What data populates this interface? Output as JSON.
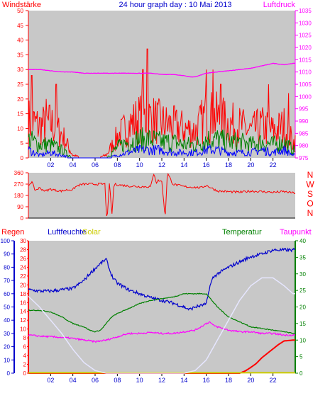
{
  "colors": {
    "wind": "#ff0000",
    "gust": "#008000",
    "avg": "#0000ff",
    "pressure": "#ff00ff",
    "direction": "#ff0000",
    "rain": "#ff0000",
    "humidity": "#0000cc",
    "solar": "#cccc00",
    "temperature": "#008000",
    "dewpoint": "#ff00ff",
    "solar_curve": "#e6e6ff",
    "plot_bg": "#c8c8c8",
    "title": "#0000cc"
  },
  "chart_data": [
    {
      "type": "line",
      "title": "24 hour graph day : 10 Mai 2013",
      "left_label": "Windstärke",
      "right_label": "Luftdruck",
      "x_ticks": [
        "02",
        "04",
        "06",
        "08",
        "10",
        "12",
        "14",
        "16",
        "18",
        "20",
        "22"
      ],
      "x_range": [
        0,
        24
      ],
      "left_ticks": [
        "0",
        "5",
        "10",
        "15",
        "20",
        "25",
        "30",
        "35",
        "40",
        "45",
        "50"
      ],
      "ylim_left": [
        0,
        50
      ],
      "right_ticks": [
        "975",
        "980",
        "985",
        "990",
        "995",
        "1000",
        "1005",
        "1010",
        "1015",
        "1020",
        "1025",
        "1030",
        "1035"
      ],
      "ylim_right": [
        975,
        1035
      ],
      "series": [
        {
          "key": "pressure",
          "axis": "right",
          "x": [
            0,
            1,
            2,
            3,
            4,
            5,
            6,
            7,
            8,
            9,
            10,
            11,
            12,
            13,
            14,
            14.5,
            15,
            16,
            17,
            18,
            19,
            20,
            21,
            22,
            23,
            23.8
          ],
          "y": [
            1011,
            1011,
            1010.5,
            1010,
            1010,
            1009.5,
            1009.5,
            1009.5,
            1009.5,
            1009.5,
            1009.5,
            1009.5,
            1009,
            1009,
            1008.5,
            1008,
            1008,
            1009.5,
            1010,
            1010.5,
            1011,
            1011.5,
            1012.5,
            1013.5,
            1013,
            1013.5
          ]
        },
        {
          "key": "wind",
          "axis": "left",
          "x": [
            0,
            1,
            2,
            3,
            4,
            5,
            6,
            7,
            8,
            9,
            10,
            11,
            12,
            13,
            14,
            15,
            16,
            17,
            18,
            19,
            20,
            21,
            22,
            23,
            23.8
          ],
          "y": [
            14,
            12,
            13,
            9,
            1,
            0,
            0,
            1,
            8,
            12,
            15,
            15,
            13,
            12,
            11,
            10,
            16,
            15,
            13,
            12,
            10,
            12,
            10,
            12,
            6
          ],
          "peaks": [
            [
              0.3,
              28
            ],
            [
              1.6,
              20
            ],
            [
              2.5,
              25
            ],
            [
              10.7,
              37
            ],
            [
              10.3,
              30
            ],
            [
              16.0,
              30
            ],
            [
              16.6,
              30
            ],
            [
              17.3,
              25
            ],
            [
              21.6,
              25
            ],
            [
              23.4,
              22
            ]
          ]
        },
        {
          "key": "gust",
          "axis": "left",
          "x": [
            0,
            1,
            2,
            3,
            4,
            5,
            6,
            7,
            8,
            9,
            10,
            11,
            12,
            13,
            14,
            15,
            16,
            17,
            18,
            19,
            20,
            21,
            22,
            23,
            23.8
          ],
          "y": [
            7,
            5,
            5,
            3,
            0,
            0,
            0,
            0,
            4,
            6,
            7,
            7,
            6,
            6,
            5,
            5,
            7,
            7,
            6,
            6,
            5,
            6,
            5,
            6,
            3
          ]
        },
        {
          "key": "avg",
          "axis": "left",
          "x": [
            0,
            1,
            2,
            3,
            4,
            5,
            6,
            7,
            8,
            9,
            10,
            11,
            12,
            13,
            14,
            15,
            16,
            17,
            18,
            19,
            20,
            21,
            22,
            23,
            23.8
          ],
          "y": [
            3,
            1,
            2,
            1,
            0,
            0,
            0,
            0,
            1,
            2,
            3,
            3,
            3,
            2,
            2,
            2,
            3,
            3,
            2,
            2,
            2,
            3,
            2,
            3,
            1
          ]
        }
      ]
    },
    {
      "type": "line",
      "left_ticks": [
        "0",
        "90",
        "180",
        "270",
        "360"
      ],
      "ylim": [
        0,
        360
      ],
      "right_ticks": [
        "N",
        "W",
        "S",
        "O",
        "N"
      ],
      "x_range": [
        0,
        24
      ],
      "series": [
        {
          "key": "direction",
          "x": [
            0,
            0.3,
            0.6,
            1,
            1.5,
            2,
            2.5,
            3,
            3.5,
            4,
            4.2,
            4.5,
            5,
            6,
            6.9,
            7.0,
            7.1,
            7.3,
            7.5,
            7.7,
            8,
            9,
            10,
            11,
            11.3,
            11.5,
            11.7,
            12,
            12.3,
            12.5,
            13,
            14,
            15,
            15.5,
            16,
            17,
            18,
            19,
            20,
            21,
            22,
            23,
            23.8
          ],
          "y": [
            260,
            290,
            220,
            240,
            215,
            230,
            220,
            215,
            225,
            225,
            245,
            260,
            270,
            270,
            270,
            40,
            0,
            300,
            10,
            270,
            265,
            255,
            250,
            250,
            360,
            280,
            300,
            290,
            0,
            360,
            270,
            250,
            245,
            240,
            260,
            215,
            210,
            205,
            215,
            210,
            205,
            210,
            200
          ]
        }
      ]
    },
    {
      "type": "line",
      "labels": {
        "rain": "Regen",
        "humidity": "Luftfeuchte",
        "solar": "Solar",
        "temperature": "Temperatur",
        "dewpoint": "Taupunkt"
      },
      "x_ticks": [
        "02",
        "04",
        "06",
        "08",
        "10",
        "12",
        "14",
        "16",
        "18",
        "20",
        "22"
      ],
      "x_range": [
        0,
        24
      ],
      "humidity_ticks": [
        "0",
        "10",
        "20",
        "30",
        "40",
        "50",
        "60",
        "70",
        "80",
        "90",
        "100"
      ],
      "ylim_humidity": [
        0,
        100
      ],
      "rain_ticks": [
        "0",
        "2",
        "4",
        "6",
        "8",
        "10",
        "12",
        "14",
        "16",
        "18",
        "20",
        "22",
        "24",
        "26",
        "28",
        "30"
      ],
      "ylim_rain": [
        0,
        30
      ],
      "temp_ticks": [
        "0",
        "5",
        "10",
        "15",
        "20",
        "25",
        "30",
        "35",
        "40"
      ],
      "ylim_temp": [
        0,
        40
      ],
      "series": [
        {
          "key": "humidity",
          "axis": "humidity",
          "x": [
            0,
            1,
            2,
            3,
            4,
            5,
            5.5,
            6,
            6.5,
            7,
            7.3,
            7.6,
            8,
            9,
            10,
            11,
            12,
            13,
            14,
            14.5,
            15,
            15.5,
            16,
            16.3,
            16.6,
            17,
            18,
            19,
            20,
            21,
            22,
            23,
            23.8
          ],
          "y": [
            63,
            62,
            62,
            63,
            64,
            70,
            75,
            79,
            83,
            86,
            78,
            72,
            68,
            63,
            60,
            57,
            55,
            53,
            50,
            48,
            50,
            51,
            52,
            65,
            72,
            75,
            80,
            84,
            88,
            90,
            93,
            93,
            93
          ],
          "noisy": true
        },
        {
          "key": "temperature",
          "axis": "temp",
          "x": [
            0,
            1,
            2,
            3,
            4,
            5,
            5.5,
            6,
            6.5,
            7,
            7.5,
            8,
            9,
            10,
            11,
            12,
            13,
            14,
            15,
            15.5,
            16,
            16.5,
            17,
            18,
            19,
            20,
            21,
            22,
            23,
            23.8
          ],
          "y": [
            19,
            19,
            18.5,
            17,
            15,
            14,
            13,
            12.5,
            13,
            15,
            17,
            18,
            19.5,
            21,
            22,
            22.5,
            23,
            24,
            24,
            24,
            24,
            22,
            20,
            17,
            15.5,
            14,
            13.5,
            13,
            12.5,
            12
          ]
        },
        {
          "key": "dewpoint",
          "axis": "temp",
          "x": [
            0,
            1,
            2,
            3,
            4,
            5,
            6,
            7,
            8,
            9,
            10,
            11,
            12,
            13,
            14,
            15,
            15.5,
            16,
            16.3,
            16.6,
            17,
            18,
            19,
            20,
            21,
            22,
            23,
            23.8
          ],
          "y": [
            11.5,
            11.2,
            11,
            10.8,
            10.5,
            10,
            9.5,
            10,
            11,
            12,
            12,
            12.3,
            12,
            12,
            12.5,
            13,
            14,
            15,
            15.5,
            14.5,
            14,
            13,
            12.5,
            12.5,
            12,
            12,
            11.5,
            11.5
          ]
        },
        {
          "key": "rain",
          "axis": "rain",
          "x": [
            0,
            19,
            19.5,
            20,
            20.5,
            21,
            21.5,
            22,
            22.5,
            23,
            23.8
          ],
          "y": [
            0,
            0,
            0.5,
            1.3,
            2.2,
            3.5,
            4.5,
            5.5,
            6.5,
            7.3,
            7.5
          ]
        },
        {
          "key": "solar",
          "axis": "humidity",
          "x": [
            0,
            23.8
          ],
          "y": [
            0.3,
            0.3
          ]
        },
        {
          "key": "solar_curve",
          "axis": "humidity",
          "x": [
            0,
            1,
            2,
            3,
            4,
            5,
            6,
            7,
            8,
            9,
            10,
            11,
            12,
            13,
            14,
            15,
            16,
            17,
            18,
            19,
            20,
            21,
            22,
            23,
            23.8
          ],
          "y": [
            58,
            50,
            40,
            30,
            18,
            8,
            2,
            0,
            0,
            0,
            0,
            0,
            0,
            0,
            0,
            2,
            10,
            25,
            40,
            55,
            66,
            72,
            72,
            66,
            60
          ]
        }
      ]
    }
  ]
}
